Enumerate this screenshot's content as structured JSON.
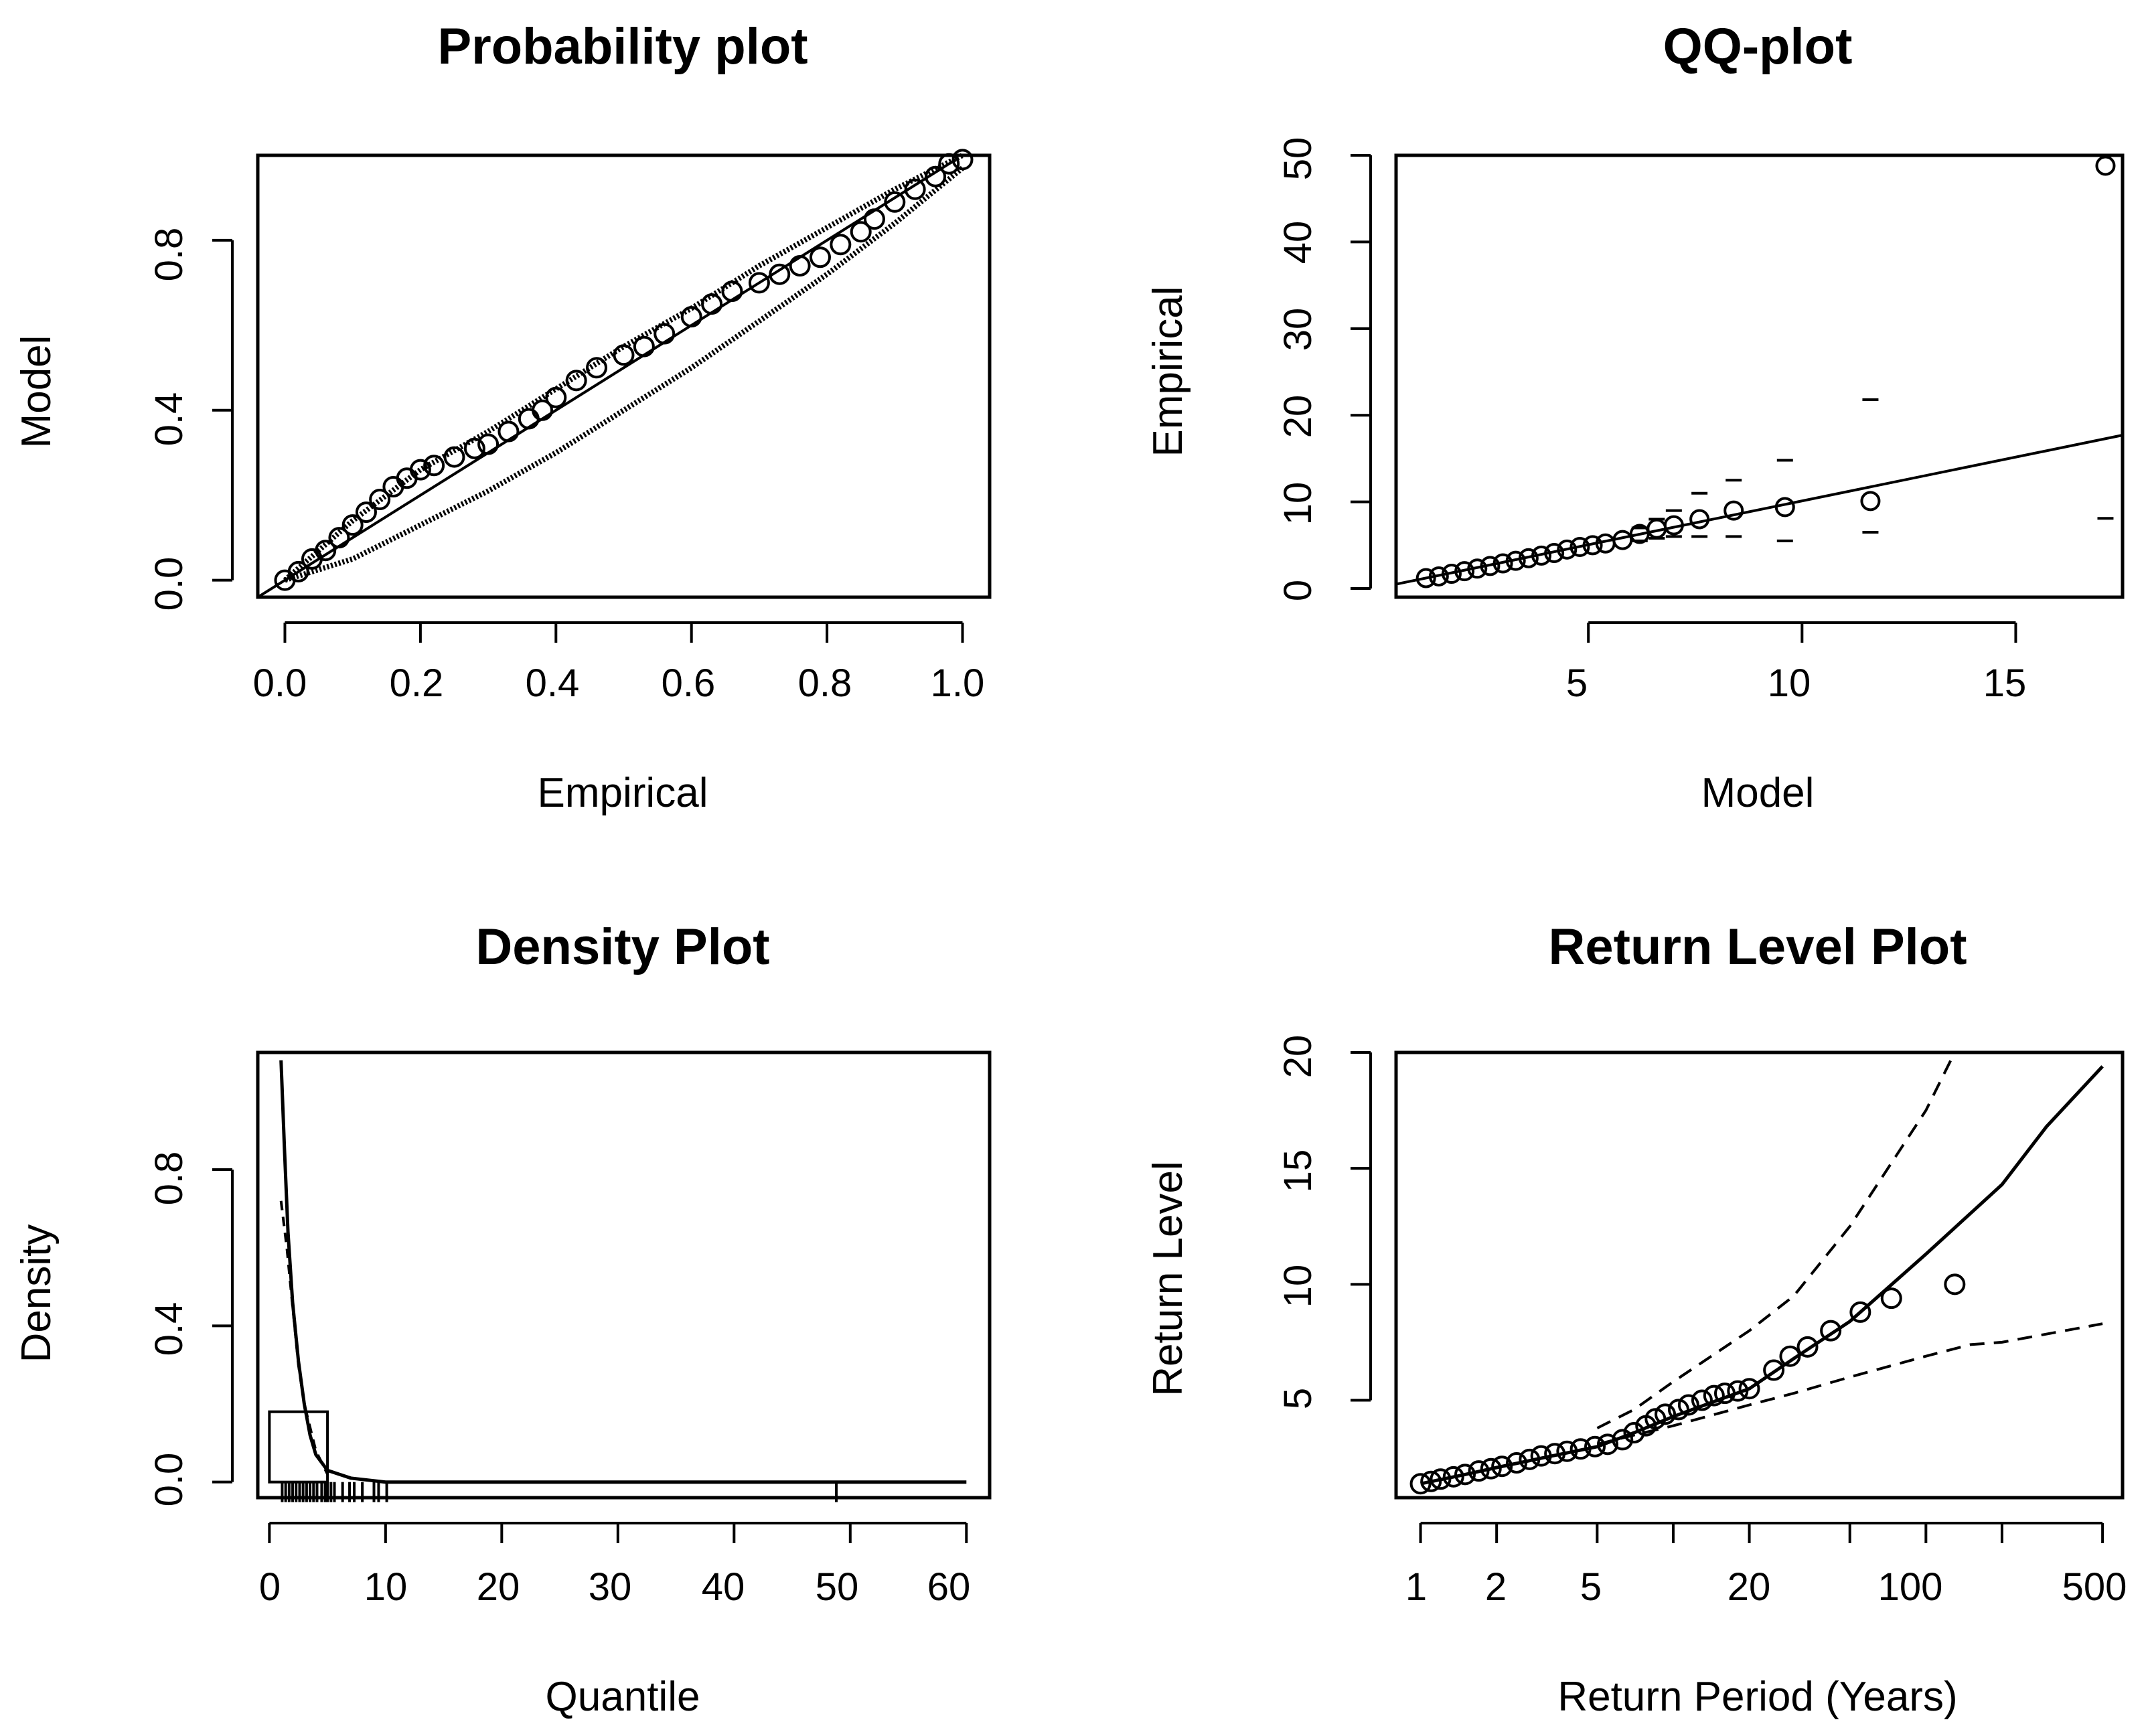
{
  "figure": {
    "panels": [
      {
        "id": "probability",
        "title": "Probability plot",
        "xlabel": "Empirical",
        "ylabel": "Model",
        "xticks": [
          "0.0",
          "0.2",
          "0.4",
          "0.6",
          "0.8",
          "1.0"
        ],
        "yticks": [
          "0.0",
          "0.4",
          "0.8"
        ]
      },
      {
        "id": "qq",
        "title": "QQ-plot",
        "xlabel": "Model",
        "ylabel": "Empirical",
        "xticks": [
          "5",
          "10",
          "15"
        ],
        "yticks": [
          "0",
          "10",
          "20",
          "30",
          "40",
          "50"
        ]
      },
      {
        "id": "density",
        "title": "Density Plot",
        "xlabel": "Quantile",
        "ylabel": "Density",
        "xticks": [
          "0",
          "10",
          "20",
          "30",
          "40",
          "50",
          "60"
        ],
        "yticks": [
          "0.0",
          "0.4",
          "0.8"
        ]
      },
      {
        "id": "return",
        "title": "Return Level Plot",
        "xlabel": "Return Period (Years)",
        "ylabel": "Return Level",
        "xticks": [
          "1",
          "2",
          "5",
          "20",
          "100",
          "500"
        ],
        "yticks": [
          "5",
          "10",
          "15",
          "20"
        ]
      }
    ]
  },
  "chart_data": [
    {
      "type": "scatter",
      "title": "Probability plot",
      "xlabel": "Empirical",
      "ylabel": "Model",
      "xlim": [
        -0.04,
        1.04
      ],
      "ylim": [
        -0.04,
        1.0
      ],
      "xticks": [
        0,
        0.2,
        0.4,
        0.6,
        0.8,
        1.0
      ],
      "yticks": [
        0,
        0.4,
        0.8
      ],
      "reference_line": "y = x",
      "points": [
        [
          0,
          0
        ],
        [
          0.02,
          0.02
        ],
        [
          0.04,
          0.05
        ],
        [
          0.06,
          0.07
        ],
        [
          0.08,
          0.1
        ],
        [
          0.1,
          0.13
        ],
        [
          0.12,
          0.16
        ],
        [
          0.14,
          0.19
        ],
        [
          0.16,
          0.22
        ],
        [
          0.18,
          0.24
        ],
        [
          0.2,
          0.26
        ],
        [
          0.22,
          0.27
        ],
        [
          0.25,
          0.29
        ],
        [
          0.28,
          0.31
        ],
        [
          0.3,
          0.32
        ],
        [
          0.33,
          0.35
        ],
        [
          0.36,
          0.38
        ],
        [
          0.38,
          0.4
        ],
        [
          0.4,
          0.43
        ],
        [
          0.43,
          0.47
        ],
        [
          0.46,
          0.5
        ],
        [
          0.5,
          0.53
        ],
        [
          0.53,
          0.55
        ],
        [
          0.56,
          0.58
        ],
        [
          0.6,
          0.62
        ],
        [
          0.63,
          0.65
        ],
        [
          0.66,
          0.68
        ],
        [
          0.7,
          0.7
        ],
        [
          0.73,
          0.72
        ],
        [
          0.76,
          0.74
        ],
        [
          0.79,
          0.76
        ],
        [
          0.82,
          0.79
        ],
        [
          0.85,
          0.82
        ],
        [
          0.87,
          0.85
        ],
        [
          0.9,
          0.89
        ],
        [
          0.93,
          0.92
        ],
        [
          0.96,
          0.95
        ],
        [
          0.98,
          0.98
        ],
        [
          1.0,
          0.99
        ]
      ],
      "ci_upper": [
        [
          0,
          0
        ],
        [
          0.1,
          0.14
        ],
        [
          0.2,
          0.26
        ],
        [
          0.3,
          0.35
        ],
        [
          0.4,
          0.45
        ],
        [
          0.5,
          0.55
        ],
        [
          0.6,
          0.64
        ],
        [
          0.7,
          0.74
        ],
        [
          0.8,
          0.83
        ],
        [
          0.9,
          0.92
        ],
        [
          1.0,
          1.0
        ]
      ],
      "ci_lower": [
        [
          0,
          0
        ],
        [
          0.1,
          0.05
        ],
        [
          0.2,
          0.13
        ],
        [
          0.3,
          0.21
        ],
        [
          0.4,
          0.3
        ],
        [
          0.5,
          0.4
        ],
        [
          0.6,
          0.5
        ],
        [
          0.7,
          0.61
        ],
        [
          0.8,
          0.72
        ],
        [
          0.9,
          0.84
        ],
        [
          1.0,
          0.97
        ]
      ]
    },
    {
      "type": "scatter",
      "title": "QQ-plot",
      "xlabel": "Model",
      "ylabel": "Empirical",
      "xlim": [
        0.5,
        17.5
      ],
      "ylim": [
        -1,
        50
      ],
      "xticks": [
        5,
        10,
        15
      ],
      "yticks": [
        0,
        10,
        20,
        30,
        40,
        50
      ],
      "points": [
        [
          1.2,
          1.2
        ],
        [
          1.5,
          1.4
        ],
        [
          1.8,
          1.7
        ],
        [
          2.1,
          2.0
        ],
        [
          2.4,
          2.3
        ],
        [
          2.7,
          2.6
        ],
        [
          3.0,
          2.9
        ],
        [
          3.3,
          3.2
        ],
        [
          3.6,
          3.5
        ],
        [
          3.9,
          3.8
        ],
        [
          4.2,
          4.1
        ],
        [
          4.5,
          4.5
        ],
        [
          4.8,
          4.8
        ],
        [
          5.1,
          5.0
        ],
        [
          5.4,
          5.2
        ],
        [
          5.8,
          5.6
        ],
        [
          6.2,
          6.3
        ],
        [
          6.6,
          6.9
        ],
        [
          7.0,
          7.3
        ],
        [
          7.6,
          8.0
        ],
        [
          8.4,
          9.0
        ],
        [
          9.6,
          9.4
        ],
        [
          11.6,
          10.1
        ],
        [
          17.1,
          48.8
        ]
      ],
      "fit_line": [
        [
          0.5,
          0.5
        ],
        [
          17.5,
          17.7
        ]
      ],
      "ci_upper": [
        [
          6.2,
          7.0
        ],
        [
          6.6,
          8.0
        ],
        [
          7.0,
          9.0
        ],
        [
          7.6,
          11.0
        ],
        [
          8.4,
          12.5
        ],
        [
          9.6,
          14.8
        ],
        [
          11.6,
          21.8
        ]
      ],
      "ci_lower": [
        [
          6.2,
          5.5
        ],
        [
          6.6,
          5.8
        ],
        [
          7.0,
          6.0
        ],
        [
          7.6,
          6.0
        ],
        [
          8.4,
          6.0
        ],
        [
          9.6,
          5.5
        ],
        [
          11.6,
          6.5
        ],
        [
          17.1,
          8.1
        ]
      ]
    },
    {
      "type": "line",
      "title": "Density Plot",
      "xlabel": "Quantile",
      "ylabel": "Density",
      "xlim": [
        -1,
        62
      ],
      "ylim": [
        -0.04,
        1.1
      ],
      "xticks": [
        0,
        10,
        20,
        30,
        40,
        50,
        60
      ],
      "yticks": [
        0,
        0.4,
        0.8
      ],
      "histogram": [
        {
          "from": 0,
          "to": 5,
          "density": 0.18
        }
      ],
      "density_curve": [
        [
          1.0,
          1.08
        ],
        [
          1.3,
          0.85
        ],
        [
          1.6,
          0.64
        ],
        [
          2.0,
          0.46
        ],
        [
          2.5,
          0.31
        ],
        [
          3.0,
          0.2
        ],
        [
          3.5,
          0.12
        ],
        [
          4.0,
          0.07
        ],
        [
          5.0,
          0.03
        ],
        [
          7.0,
          0.01
        ],
        [
          10,
          0.0
        ],
        [
          60,
          0.0
        ]
      ],
      "empirical_density": [
        [
          1.0,
          0.72
        ],
        [
          1.5,
          0.6
        ],
        [
          2.0,
          0.45
        ],
        [
          2.5,
          0.3
        ],
        [
          3.0,
          0.2
        ],
        [
          4.0,
          0.08
        ],
        [
          5.0,
          0.02
        ]
      ],
      "rug": [
        1.1,
        1.4,
        1.7,
        2.0,
        2.3,
        2.6,
        2.9,
        3.2,
        3.5,
        3.8,
        4.1,
        4.5,
        4.8,
        5.0,
        5.3,
        5.6,
        6.3,
        6.9,
        7.3,
        8.0,
        9.0,
        9.4,
        10.1,
        48.8
      ]
    },
    {
      "type": "line",
      "title": "Return Level Plot",
      "xlabel": "Return Period (Years)",
      "ylabel": "Return Level",
      "x_scale": "log",
      "xlim": [
        0.8,
        600
      ],
      "ylim": [
        0.8,
        20
      ],
      "xticks": [
        1,
        2,
        5,
        10,
        20,
        50,
        100,
        200,
        500
      ],
      "xtick_labels": [
        "1",
        "2",
        "5",
        "",
        "20",
        "",
        "100",
        "",
        "500"
      ],
      "yticks": [
        5,
        10,
        15,
        20
      ],
      "fit_curve": [
        [
          1,
          1.4
        ],
        [
          1.5,
          1.8
        ],
        [
          2,
          2.1
        ],
        [
          3,
          2.5
        ],
        [
          5,
          3.0
        ],
        [
          7,
          3.6
        ],
        [
          10,
          4.3
        ],
        [
          15,
          5.0
        ],
        [
          20,
          5.5
        ],
        [
          30,
          6.8
        ],
        [
          50,
          8.4
        ],
        [
          100,
          11.3
        ],
        [
          200,
          14.3
        ],
        [
          300,
          16.8
        ],
        [
          500,
          19.4
        ]
      ],
      "ci_upper": [
        [
          5,
          3.8
        ],
        [
          7,
          4.6
        ],
        [
          10,
          5.8
        ],
        [
          20,
          8.0
        ],
        [
          30,
          9.5
        ],
        [
          50,
          12.5
        ],
        [
          100,
          17.5
        ],
        [
          130,
          20
        ]
      ],
      "ci_lower": [
        [
          5,
          3.1
        ],
        [
          7,
          3.5
        ],
        [
          10,
          3.9
        ],
        [
          20,
          4.8
        ],
        [
          30,
          5.3
        ],
        [
          50,
          6.0
        ],
        [
          100,
          6.9
        ],
        [
          150,
          7.4
        ],
        [
          200,
          7.5
        ],
        [
          500,
          8.3
        ]
      ],
      "points": [
        [
          1.0,
          1.4
        ],
        [
          1.1,
          1.5
        ],
        [
          1.2,
          1.6
        ],
        [
          1.35,
          1.7
        ],
        [
          1.5,
          1.8
        ],
        [
          1.7,
          1.95
        ],
        [
          1.9,
          2.05
        ],
        [
          2.1,
          2.15
        ],
        [
          2.4,
          2.3
        ],
        [
          2.7,
          2.45
        ],
        [
          3.0,
          2.6
        ],
        [
          3.4,
          2.7
        ],
        [
          3.8,
          2.8
        ],
        [
          4.3,
          2.9
        ],
        [
          4.9,
          3.0
        ],
        [
          5.5,
          3.1
        ],
        [
          6.3,
          3.3
        ],
        [
          7.0,
          3.6
        ],
        [
          7.8,
          3.9
        ],
        [
          8.5,
          4.2
        ],
        [
          9.3,
          4.4
        ],
        [
          10.5,
          4.6
        ],
        [
          11.5,
          4.8
        ],
        [
          13,
          5.0
        ],
        [
          14.5,
          5.2
        ],
        [
          16,
          5.3
        ],
        [
          18,
          5.4
        ],
        [
          20,
          5.5
        ],
        [
          25,
          6.3
        ],
        [
          29,
          6.9
        ],
        [
          34,
          7.3
        ],
        [
          42,
          8.0
        ],
        [
          55,
          8.8
        ],
        [
          73,
          9.4
        ],
        [
          130,
          10.0
        ]
      ]
    }
  ]
}
